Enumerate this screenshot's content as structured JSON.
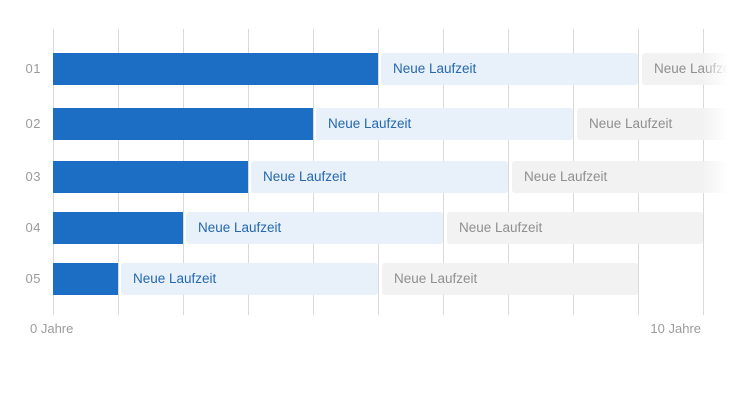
{
  "chart_data": {
    "type": "bar",
    "orientation": "horizontal",
    "stacked": true,
    "title": "",
    "xlabel": "",
    "ylabel": "",
    "unit": "Jahre",
    "categories": [
      "01",
      "02",
      "03",
      "04",
      "05"
    ],
    "series": [
      {
        "name": "restlaufzeit",
        "label": "",
        "values_years": [
          5,
          4,
          3,
          2,
          1
        ],
        "color": "#1c6ec5",
        "text_color": ""
      },
      {
        "name": "neue-laufzeit-blau",
        "label": "Neue Laufzeit",
        "values_years": [
          4,
          4,
          4,
          4,
          4
        ],
        "color": "#e8f0fa",
        "text_color": "#2568b0"
      },
      {
        "name": "neue-laufzeit-grau",
        "label": "Neue Laufzeit",
        "values_years": [
          4,
          4,
          4,
          4,
          4
        ],
        "color": "#f2f2f2",
        "text_color": "#8f8f8f"
      }
    ],
    "x_axis": {
      "min": 0,
      "max": 10,
      "tick_step_years": 1,
      "gridlines": true,
      "labels": [
        {
          "value": 0,
          "text": "0 Jahre"
        },
        {
          "value": 10,
          "text": "10 Jahre"
        }
      ]
    },
    "legend": null,
    "colors": {
      "gridline": "#d9d9d9",
      "category_label": "#9b9b9b",
      "axis_label": "#9b9b9b",
      "background": "#ffffff"
    }
  }
}
